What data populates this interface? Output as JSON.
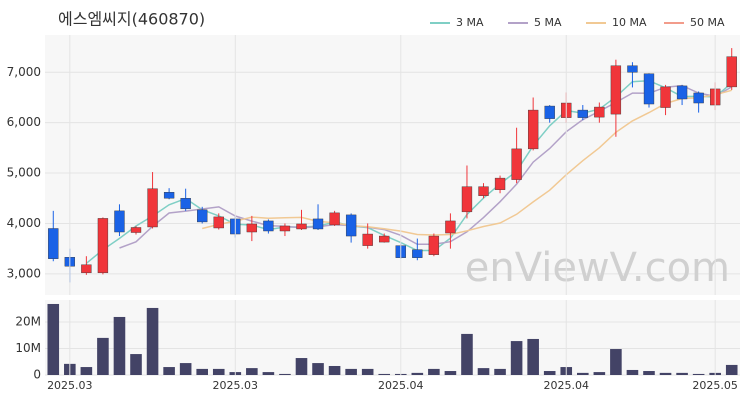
{
  "chart_data": [
    {
      "type": "candlestick",
      "title": "에스엠씨지(460870)",
      "watermark": "enViewV.com",
      "open": [
        3900,
        3330,
        3020,
        3020,
        4250,
        3820,
        3930,
        4620,
        4500,
        4270,
        3910,
        4090,
        3830,
        4050,
        3850,
        3890,
        4090,
        3970,
        4170,
        3560,
        3630,
        3560,
        3480,
        3380,
        3810,
        4230,
        4550,
        4670,
        4870,
        5480,
        6330,
        6100,
        6250,
        6110,
        6170,
        7130,
        6970,
        6300,
        6730,
        6590,
        6350,
        6710
      ],
      "high": [
        4250,
        3500,
        3350,
        4120,
        4380,
        3950,
        5020,
        4700,
        4690,
        4330,
        4200,
        4130,
        4150,
        4080,
        4000,
        4270,
        4380,
        4250,
        4200,
        4000,
        3800,
        3600,
        3700,
        3800,
        4200,
        5150,
        4800,
        4950,
        5900,
        6500,
        6350,
        6600,
        6350,
        6400,
        7250,
        7200,
        6980,
        6750,
        6750,
        6620,
        6800,
        7480
      ],
      "low": [
        3250,
        2830,
        2980,
        2990,
        3750,
        3780,
        3900,
        4480,
        4250,
        4000,
        3880,
        3720,
        3650,
        3800,
        3750,
        3870,
        3870,
        3950,
        3620,
        3500,
        3620,
        3300,
        3270,
        3350,
        3500,
        4100,
        4500,
        4600,
        4800,
        5450,
        6000,
        6000,
        6050,
        6000,
        5720,
        6700,
        6300,
        6150,
        6350,
        6200,
        6250,
        6650
      ],
      "close": [
        3300,
        3150,
        3180,
        4100,
        3830,
        3920,
        4690,
        4500,
        4290,
        4030,
        4130,
        3790,
        3990,
        3850,
        3950,
        3990,
        3890,
        4210,
        3750,
        3790,
        3750,
        3320,
        3320,
        3750,
        4050,
        4730,
        4730,
        4900,
        5480,
        6250,
        6080,
        6390,
        6100,
        6310,
        7130,
        7000,
        6370,
        6710,
        6470,
        6390,
        6670,
        7310
      ],
      "up_color": "#f0353a",
      "down_color": "#1a62e6",
      "ylim": [
        2580,
        7740
      ],
      "yticks": [
        {
          "value": 3000,
          "label": "3,000"
        },
        {
          "value": 4000,
          "label": "4,000"
        },
        {
          "value": 5000,
          "label": "5,000"
        },
        {
          "value": 6000,
          "label": "6,000"
        },
        {
          "value": 7000,
          "label": "7,000"
        }
      ],
      "grid": true,
      "legend": "top-right",
      "series": [
        {
          "name": "3 MA",
          "color": "#7fcfc5",
          "values": [
            null,
            null,
            3210,
            3477,
            3703,
            3950,
            4147,
            4370,
            4493,
            4273,
            4150,
            3983,
            3970,
            3877,
            3930,
            3930,
            3943,
            4030,
            3950,
            3917,
            3763,
            3620,
            3463,
            3463,
            3707,
            4177,
            4503,
            4787,
            5037,
            5543,
            5937,
            6240,
            6190,
            6267,
            6513,
            6813,
            6833,
            6693,
            6517,
            6523,
            6510,
            6790
          ]
        },
        {
          "name": "5 MA",
          "color": "#b3a2c8",
          "values": [
            null,
            null,
            null,
            null,
            3512,
            3636,
            3944,
            4208,
            4246,
            4286,
            4328,
            4148,
            4046,
            3958,
            3942,
            3914,
            3934,
            3978,
            3958,
            3926,
            3878,
            3764,
            3586,
            3586,
            3638,
            3834,
            4116,
            4432,
            4778,
            5218,
            5488,
            5820,
            6060,
            6226,
            6402,
            6586,
            6582,
            6704,
            6736,
            6588,
            6522,
            6710
          ]
        },
        {
          "name": "10 MA",
          "color": "#f1c994",
          "values": [
            null,
            null,
            null,
            null,
            null,
            null,
            null,
            null,
            null,
            3899,
            3982,
            4046,
            4127,
            4102,
            4114,
            4121,
            4041,
            4012,
            3957,
            3933,
            3895,
            3848,
            3781,
            3771,
            3781,
            3855,
            3939,
            4008,
            4181,
            4427,
            4660,
            4967,
            5245,
            5501,
            5809,
            6036,
            6200,
            6381,
            6480,
            6494,
            6553,
            6643
          ]
        },
        {
          "name": "50 MA",
          "color": "#f29c8b",
          "values": [
            null,
            null,
            null,
            null,
            null,
            null,
            null,
            null,
            null,
            null,
            null,
            null,
            null,
            null,
            null,
            null,
            null,
            null,
            null,
            null,
            null,
            null,
            null,
            null,
            null,
            null,
            null,
            null,
            null,
            null,
            null,
            null,
            null,
            null,
            null,
            null,
            null,
            null,
            null,
            null,
            null,
            null
          ]
        }
      ]
    },
    {
      "type": "bar",
      "color": "#434366",
      "categories": [
        null,
        "2025.03",
        null,
        null,
        null,
        null,
        null,
        null,
        null,
        null,
        null,
        "2025.03",
        null,
        null,
        null,
        null,
        null,
        null,
        null,
        null,
        null,
        "2025.04",
        null,
        null,
        null,
        null,
        null,
        null,
        null,
        null,
        null,
        "2025.04",
        null,
        null,
        null,
        null,
        null,
        null,
        null,
        null,
        "2025.05",
        null
      ],
      "values": [
        26800000,
        4200000,
        3000000,
        14000000,
        21900000,
        7900000,
        25300000,
        3000000,
        4500000,
        2300000,
        2300000,
        1100000,
        2600000,
        1100000,
        400000,
        6400000,
        4500000,
        3400000,
        2300000,
        2300000,
        400000,
        400000,
        800000,
        2300000,
        1500000,
        15500000,
        2600000,
        2300000,
        12800000,
        13600000,
        1500000,
        3000000,
        800000,
        1100000,
        9800000,
        1900000,
        1500000,
        800000,
        800000,
        400000,
        800000,
        3800000
      ],
      "ylim": [
        0,
        28300000
      ],
      "yticks": [
        0,
        {
          "value": 10000000,
          "label": "10M"
        },
        {
          "value": 20000000,
          "label": "20M"
        }
      ],
      "grid": true
    }
  ]
}
